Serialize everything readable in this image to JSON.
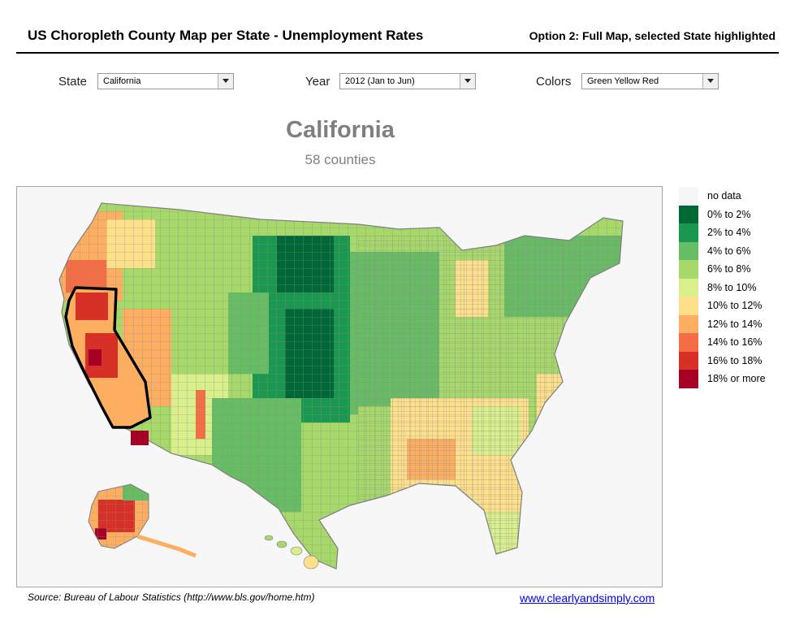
{
  "header": {
    "title": "US Choropleth County Map per State - Unemployment Rates",
    "option": "Option 2: Full Map, selected  State highlighted"
  },
  "controls": {
    "state": {
      "label": "State",
      "value": "California"
    },
    "year": {
      "label": "Year",
      "value": "2012 (Jan to Jun)"
    },
    "colors": {
      "label": "Colors",
      "value": "Green Yellow Red"
    }
  },
  "selection": {
    "state_name": "California",
    "county_count": "58 counties"
  },
  "legend": [
    {
      "label": "no data",
      "color": "#f7f7f7"
    },
    {
      "label": "0%  to 2%",
      "color": "#006837"
    },
    {
      "label": "2% to 4%",
      "color": "#1a9850"
    },
    {
      "label": "4% to 6%",
      "color": "#66bd63"
    },
    {
      "label": "6% to 8%",
      "color": "#a6d96a"
    },
    {
      "label": "8% to 10%",
      "color": "#d9ef8b"
    },
    {
      "label": "10% to 12%",
      "color": "#fee08b"
    },
    {
      "label": "12% to 14%",
      "color": "#fdae61"
    },
    {
      "label": "14% to 16%",
      "color": "#f46d43"
    },
    {
      "label": "16% to 18%",
      "color": "#d73027"
    },
    {
      "label": "18% or more",
      "color": "#a50026"
    }
  ],
  "footer": {
    "source": "Source: Bureau of Labour Statistics (http://www.bls.gov/home.htm)",
    "site": "www.clearlyandsimply.com"
  }
}
